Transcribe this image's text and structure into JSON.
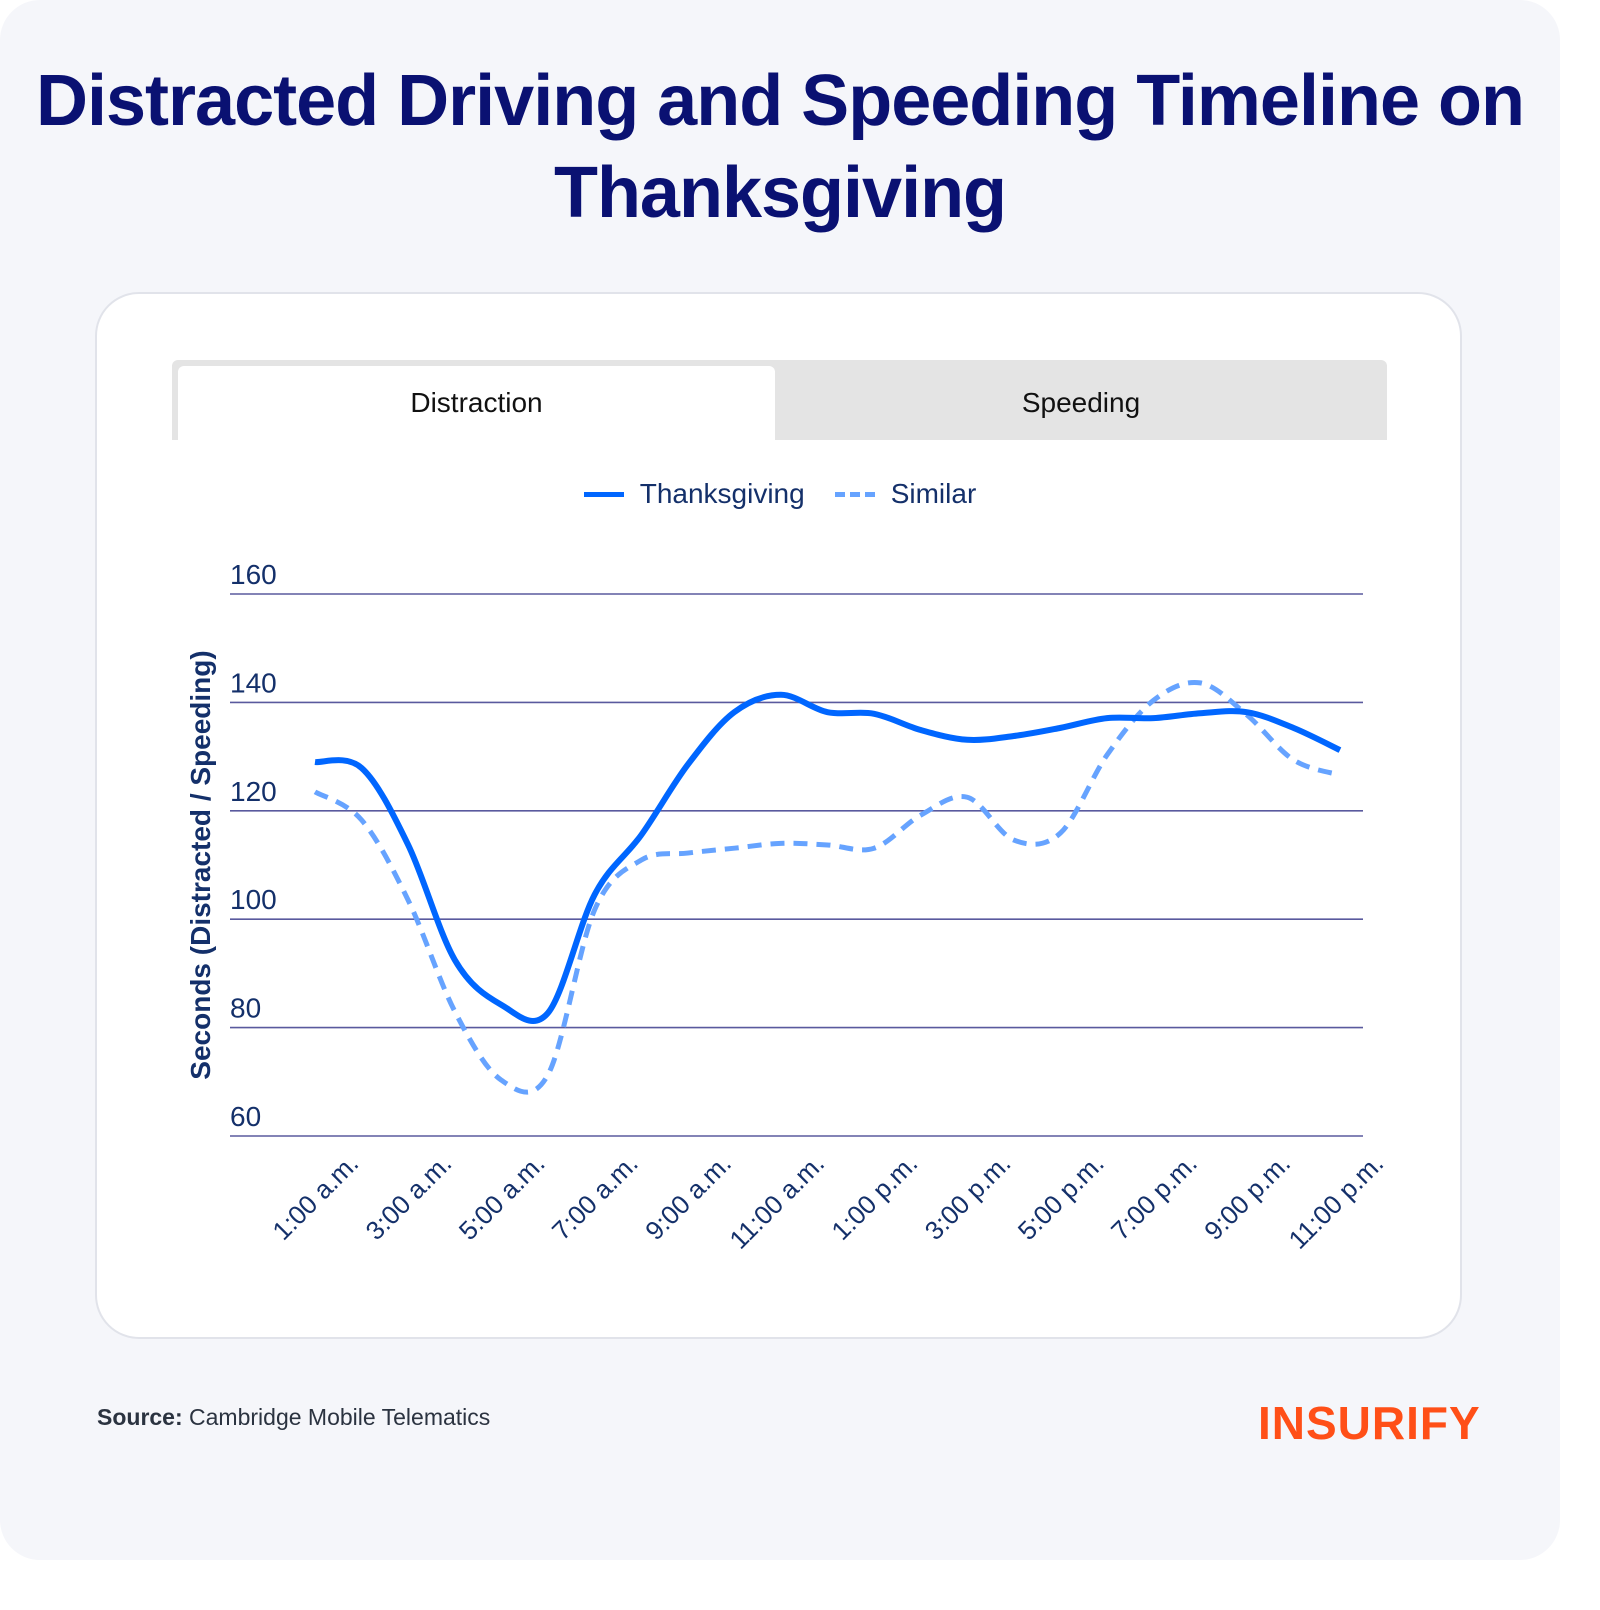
{
  "title": "Distracted Driving and Speeding Timeline on Thanksgiving",
  "tabs": [
    {
      "label": "Distraction",
      "active": true
    },
    {
      "label": "Speeding",
      "active": false
    }
  ],
  "source_label": "Source:",
  "source_text": "Cambridge Mobile Telematics",
  "logo_text": "INSURIFY",
  "colors": {
    "title": "#0a1172",
    "thanksgiving": "#0066ff",
    "similar": "#66a3ff",
    "grid": "#5a5a9e",
    "logo": "#ff4f17"
  },
  "chart_data": {
    "type": "line",
    "title": "",
    "xlabel": "",
    "ylabel": "Seconds (Distracted / Speeding)",
    "ylim": [
      60,
      160
    ],
    "yticks": [
      "60",
      "80",
      "100",
      "120",
      "140",
      "160"
    ],
    "x_hours": [
      1,
      2,
      3,
      4,
      5,
      6,
      7,
      8,
      9,
      10,
      11,
      12,
      13,
      14,
      15,
      16,
      17,
      18,
      19,
      20,
      21,
      22,
      23
    ],
    "xtick_labels": [
      "1:00 a.m.",
      "3:00 a.m.",
      "5:00 a.m.",
      "7:00 a.m.",
      "9:00 a.m.",
      "11:00 a.m.",
      "1:00 p.m.",
      "3:00 p.m.",
      "5:00 p.m.",
      "7:00 p.m.",
      "9:00 p.m.",
      "11:00 p.m."
    ],
    "legend_placement": "top-center",
    "grid": true,
    "series": [
      {
        "name": "Thanksgiving",
        "style": "solid",
        "values": [
          129,
          127.9,
          113.7,
          92.5,
          84.2,
          82.7,
          104.5,
          115.5,
          128.5,
          138.2,
          141.4,
          138.2,
          137.9,
          134.9,
          133.1,
          133.8,
          135.3,
          137.1,
          137.1,
          138,
          138.2,
          135.3,
          131.2
        ]
      },
      {
        "name": "Similar",
        "style": "dashed",
        "values": [
          123.5,
          118.3,
          103.5,
          83,
          70.3,
          71.3,
          101.7,
          110.9,
          112.2,
          113.1,
          114,
          113.7,
          113.1,
          119.2,
          122.5,
          114.6,
          115.9,
          130.3,
          140.4,
          143.6,
          137.7,
          129.4,
          126.6
        ]
      }
    ]
  }
}
